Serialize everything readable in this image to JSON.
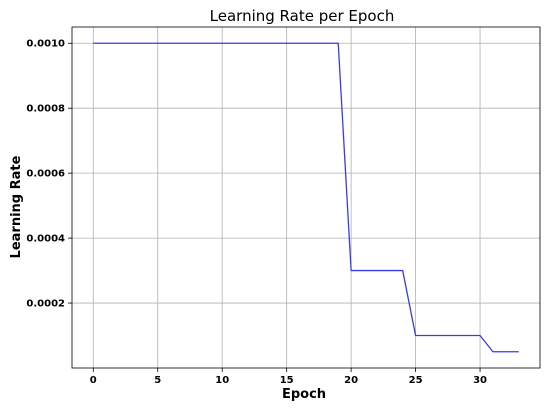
{
  "chart_data": {
    "type": "line",
    "title": "Learning Rate per Epoch",
    "xlabel": "Epoch",
    "ylabel": "Learning Rate",
    "xlim": [
      -1.65,
      34.65
    ],
    "ylim": [
      0.0,
      0.00105
    ],
    "xticks": [
      0,
      5,
      10,
      15,
      20,
      25,
      30
    ],
    "yticks": [
      0.0002,
      0.0004,
      0.0006,
      0.0008,
      0.001
    ],
    "grid": true,
    "series": [
      {
        "color": "#3a3aeb",
        "x": [
          0,
          19,
          20,
          24,
          25,
          30,
          31,
          33
        ],
        "y": [
          0.001,
          0.001,
          0.0003,
          0.0003,
          0.0001,
          0.0001,
          5e-05,
          5e-05
        ]
      }
    ]
  }
}
